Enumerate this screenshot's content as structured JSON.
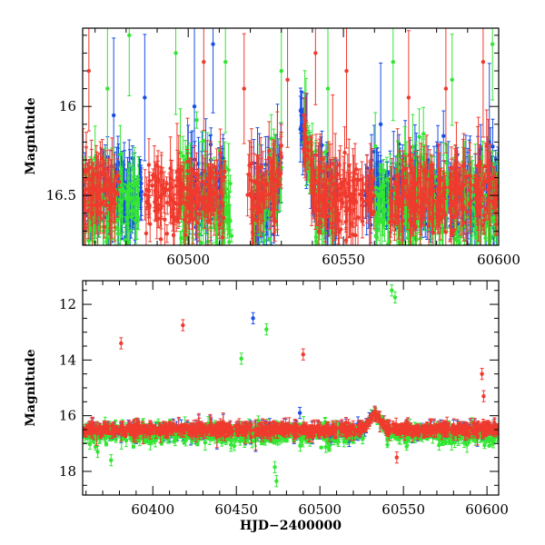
{
  "chart_data": [
    {
      "type": "scatter",
      "panel": "top",
      "xlabel": "",
      "ylabel": "Magnitude",
      "xlim": [
        60466,
        60600
      ],
      "ylim": [
        16.78,
        15.56
      ],
      "xticks": [
        60500,
        60550,
        60600
      ],
      "xtick_labels": [
        "60500",
        "60550",
        "60600"
      ],
      "yticks": [
        16,
        16.5
      ],
      "ytick_labels": [
        "16",
        "16.5"
      ],
      "series": [
        {
          "name": "blue",
          "color": "#1a4fe6",
          "baseline": 16.5,
          "spread": 0.22,
          "segments": [
            [
              60466,
              60485
            ],
            [
              60500,
              60512
            ],
            [
              60521,
              60530
            ],
            [
              60536,
              60548
            ],
            [
              60557,
              60600
            ]
          ],
          "outliers": [
            [
              60476,
              16.05
            ],
            [
              60486,
              15.95
            ],
            [
              60502,
              16.0
            ],
            [
              60508,
              15.65
            ],
            [
              60562,
              16.1
            ],
            [
              60597,
              16.2
            ]
          ]
        },
        {
          "name": "green",
          "color": "#33e633",
          "baseline": 16.55,
          "spread": 0.28,
          "segments": [
            [
              60466,
              60484
            ],
            [
              60497,
              60514
            ],
            [
              60521,
              60530
            ],
            [
              60537,
              60547
            ],
            [
              60560,
              60600
            ]
          ],
          "outliers": [
            [
              60474,
              15.9
            ],
            [
              60481,
              15.6
            ],
            [
              60496,
              15.7
            ],
            [
              60512,
              15.75
            ],
            [
              60530,
              15.8
            ],
            [
              60545,
              15.9
            ],
            [
              60566,
              15.75
            ],
            [
              60585,
              15.85
            ],
            [
              60598,
              15.65
            ]
          ]
        },
        {
          "name": "red",
          "color": "#f03a2e",
          "baseline": 16.5,
          "spread": 0.2,
          "segments": [
            [
              60466,
              60478
            ],
            [
              60486,
              60512
            ],
            [
              60519,
              60530
            ],
            [
              60537,
              60560
            ],
            [
              60565,
              60600
            ]
          ],
          "outliers": [
            [
              60468,
              15.8
            ],
            [
              60505,
              15.75
            ],
            [
              60518,
              15.9
            ],
            [
              60532,
              15.85
            ],
            [
              60541,
              15.7
            ],
            [
              60551,
              15.8
            ],
            [
              60571,
              15.95
            ],
            [
              60583,
              15.9
            ],
            [
              60595,
              15.75
            ]
          ]
        }
      ],
      "flare": {
        "start": 60528,
        "peak": 60534,
        "end": 60541,
        "base_mag": 16.5,
        "peak_mag": 15.85
      }
    },
    {
      "type": "scatter",
      "panel": "bottom",
      "xlabel": "HJD−2400000",
      "ylabel": "Magnitude",
      "xlim": [
        60358,
        60607
      ],
      "ylim": [
        18.85,
        11.15
      ],
      "xticks": [
        60400,
        60450,
        60500,
        60550,
        60600
      ],
      "xtick_labels": [
        "60400",
        "60450",
        "60500",
        "60550",
        "60600"
      ],
      "yticks": [
        12,
        14,
        16,
        18
      ],
      "ytick_labels": [
        "12",
        "14",
        "16",
        "18"
      ],
      "series": [
        {
          "name": "blue",
          "color": "#1a4fe6",
          "baseline": 16.55,
          "spread": 0.22,
          "outliers": [
            [
              60460,
              12.5
            ],
            [
              60470,
              16.3
            ],
            [
              60488,
              15.9
            ],
            [
              60531,
              16.0
            ]
          ]
        },
        {
          "name": "green",
          "color": "#33e633",
          "baseline": 16.65,
          "spread": 0.35,
          "outliers": [
            [
              60367,
              17.3
            ],
            [
              60375,
              17.6
            ],
            [
              60453,
              13.95
            ],
            [
              60468,
              12.9
            ],
            [
              60474,
              18.35
            ],
            [
              60473,
              17.85
            ],
            [
              60543,
              11.5
            ],
            [
              60545,
              11.75
            ],
            [
              60520,
              16.6
            ]
          ]
        },
        {
          "name": "red",
          "color": "#f03a2e",
          "baseline": 16.5,
          "spread": 0.22,
          "outliers": [
            [
              60381,
              13.4
            ],
            [
              60418,
              12.75
            ],
            [
              60490,
              13.8
            ],
            [
              60597,
              14.5
            ],
            [
              60546,
              17.5
            ],
            [
              60598,
              15.3
            ]
          ]
        }
      ],
      "flare": {
        "start": 60526,
        "peak": 60533,
        "end": 60540,
        "base_mag": 16.5,
        "peak_mag": 15.9
      }
    }
  ]
}
